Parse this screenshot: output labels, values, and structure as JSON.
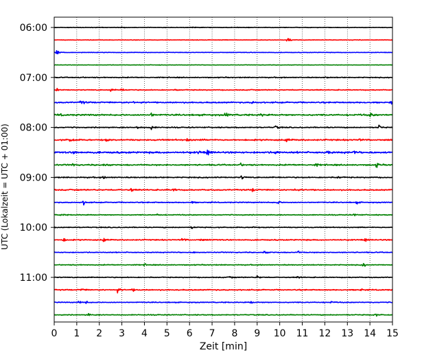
{
  "chart_data": {
    "type": "line",
    "title": "",
    "xlabel": "Zeit  [min]",
    "ylabel": "UTC (Lokalzeit = UTC + 01:00)",
    "xlim": [
      0,
      15
    ],
    "x_ticks": [
      0,
      1,
      2,
      3,
      4,
      5,
      6,
      7,
      8,
      9,
      10,
      11,
      12,
      13,
      14,
      15
    ],
    "x_tick_labels": [
      "0",
      "1",
      "2",
      "3",
      "4",
      "5",
      "6",
      "7",
      "8",
      "9",
      "10",
      "11",
      "12",
      "13",
      "14",
      "15"
    ],
    "grid": "vertical-dotted",
    "row_minutes": 15,
    "color_cycle": [
      "#000000",
      "#ff0000",
      "#0000ff",
      "#008000"
    ],
    "y_tick_labels": [
      "06:00",
      "07:00",
      "08:00",
      "09:00",
      "10:00",
      "11:00"
    ],
    "rows": [
      {
        "start": "06:00",
        "color": "#000000",
        "noise": 0.5,
        "events": [
          [
            3.0,
            0.4
          ],
          [
            6.2,
            0.3
          ]
        ]
      },
      {
        "start": "06:15",
        "color": "#ff0000",
        "noise": 0.5,
        "events": [
          [
            10.35,
            1.9
          ]
        ]
      },
      {
        "start": "06:30",
        "color": "#0000ff",
        "noise": 0.5,
        "events": [
          [
            0.1,
            2.2
          ]
        ]
      },
      {
        "start": "06:45",
        "color": "#008000",
        "noise": 0.4,
        "events": [
          [
            4.7,
            0.3
          ]
        ]
      },
      {
        "start": "07:00",
        "color": "#000000",
        "noise": 0.8,
        "events": [
          [
            1.1,
            0.9
          ],
          [
            12.0,
            0.5
          ]
        ]
      },
      {
        "start": "07:15",
        "color": "#ff0000",
        "noise": 0.8,
        "events": [
          [
            0.1,
            1.7
          ],
          [
            2.5,
            1.2
          ],
          [
            3.0,
            1.0
          ],
          [
            5.4,
            0.6
          ]
        ]
      },
      {
        "start": "07:30",
        "color": "#0000ff",
        "noise": 1.2,
        "events": [
          [
            1.2,
            2.0
          ],
          [
            3.5,
            0.7
          ],
          [
            8.8,
            0.8
          ],
          [
            14.9,
            1.2
          ]
        ]
      },
      {
        "start": "07:45",
        "color": "#008000",
        "noise": 1.4,
        "events": [
          [
            0.2,
            1.2
          ],
          [
            4.3,
            1.6
          ],
          [
            7.6,
            1.7
          ],
          [
            9.2,
            0.9
          ],
          [
            14.0,
            1.8
          ]
        ]
      },
      {
        "start": "08:00",
        "color": "#000000",
        "noise": 0.9,
        "events": [
          [
            3.7,
            1.2
          ],
          [
            4.3,
            1.9
          ],
          [
            9.8,
            1.8
          ],
          [
            14.4,
            1.5
          ]
        ]
      },
      {
        "start": "08:15",
        "color": "#ff0000",
        "noise": 1.3,
        "events": [
          [
            0.7,
            1.7
          ],
          [
            2.3,
            1.0
          ],
          [
            5.9,
            1.2
          ],
          [
            10.3,
            2.0
          ],
          [
            13.5,
            1.0
          ]
        ]
      },
      {
        "start": "08:30",
        "color": "#0000ff",
        "noise": 1.6,
        "events": [
          [
            0.9,
            1.5
          ],
          [
            6.4,
            1.2
          ],
          [
            6.8,
            2.0
          ],
          [
            9.8,
            1.4
          ],
          [
            12.1,
            1.5
          ],
          [
            13.3,
            1.2
          ]
        ]
      },
      {
        "start": "08:45",
        "color": "#008000",
        "noise": 1.2,
        "events": [
          [
            0.8,
            1.1
          ],
          [
            2.2,
            1.8
          ],
          [
            8.2,
            1.9
          ],
          [
            11.6,
            1.0
          ],
          [
            14.3,
            1.8
          ]
        ]
      },
      {
        "start": "09:00",
        "color": "#000000",
        "noise": 1.0,
        "events": [
          [
            2.2,
            0.9
          ],
          [
            7.2,
            0.6
          ],
          [
            8.3,
            1.6
          ],
          [
            12.6,
            0.8
          ]
        ]
      },
      {
        "start": "09:15",
        "color": "#ff0000",
        "noise": 1.1,
        "events": [
          [
            3.4,
            1.5
          ],
          [
            5.3,
            1.5
          ],
          [
            8.8,
            1.2
          ],
          [
            10.6,
            1.4
          ]
        ]
      },
      {
        "start": "09:30",
        "color": "#0000ff",
        "noise": 0.9,
        "events": [
          [
            1.3,
            1.6
          ],
          [
            6.1,
            0.8
          ],
          [
            9.9,
            1.3
          ],
          [
            13.4,
            0.9
          ]
        ]
      },
      {
        "start": "09:45",
        "color": "#008000",
        "noise": 0.8,
        "events": [
          [
            0.3,
            1.1
          ],
          [
            4.6,
            0.9
          ],
          [
            13.3,
            1.0
          ]
        ]
      },
      {
        "start": "10:00",
        "color": "#000000",
        "noise": 0.8,
        "events": [
          [
            6.1,
            1.1
          ],
          [
            8.8,
            0.7
          ]
        ]
      },
      {
        "start": "10:15",
        "color": "#ff0000",
        "noise": 1.0,
        "events": [
          [
            0.4,
            1.5
          ],
          [
            2.2,
            1.9
          ],
          [
            5.7,
            1.5
          ],
          [
            6.5,
            0.9
          ],
          [
            13.8,
            1.0
          ]
        ]
      },
      {
        "start": "10:30",
        "color": "#0000ff",
        "noise": 0.8,
        "events": [
          [
            6.2,
            0.6
          ],
          [
            9.3,
            1.3
          ],
          [
            10.8,
            0.9
          ]
        ]
      },
      {
        "start": "10:45",
        "color": "#008000",
        "noise": 0.8,
        "events": [
          [
            4.0,
            0.8
          ],
          [
            13.7,
            1.3
          ]
        ]
      },
      {
        "start": "11:00",
        "color": "#000000",
        "noise": 0.8,
        "events": [
          [
            7.8,
            0.7
          ],
          [
            9.0,
            1.3
          ],
          [
            10.8,
            0.8
          ]
        ]
      },
      {
        "start": "11:15",
        "color": "#ff0000",
        "noise": 1.0,
        "events": [
          [
            1.2,
            1.0
          ],
          [
            2.8,
            1.6
          ],
          [
            3.5,
            0.8
          ],
          [
            13.6,
            0.8
          ]
        ]
      },
      {
        "start": "11:30",
        "color": "#0000ff",
        "noise": 0.8,
        "events": [
          [
            1.1,
            1.1
          ],
          [
            1.4,
            1.0
          ],
          [
            8.7,
            1.1
          ],
          [
            12.3,
            0.7
          ]
        ]
      },
      {
        "start": "11:45",
        "color": "#008000",
        "noise": 0.8,
        "events": [
          [
            1.5,
            0.9
          ],
          [
            14.2,
            1.3
          ]
        ]
      }
    ]
  }
}
